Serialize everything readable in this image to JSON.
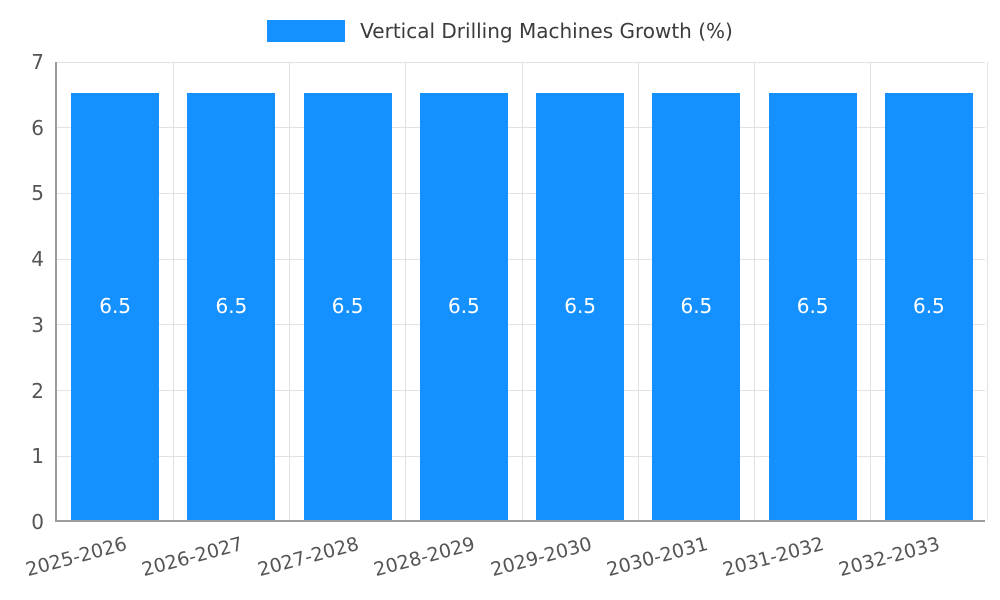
{
  "chart_data": {
    "type": "bar",
    "title": "Vertical Drilling Machines Growth (%)",
    "categories": [
      "2025-2026",
      "2026-2027",
      "2027-2028",
      "2028-2029",
      "2029-2030",
      "2030-2031",
      "2031-2032",
      "2032-2033"
    ],
    "series": [
      {
        "name": "Vertical Drilling Machines Growth (%)",
        "values": [
          6.5,
          6.5,
          6.5,
          6.5,
          6.5,
          6.5,
          6.5,
          6.5
        ]
      }
    ],
    "value_labels": [
      "6.5",
      "6.5",
      "6.5",
      "6.5",
      "6.5",
      "6.5",
      "6.5",
      "6.5"
    ],
    "xlabel": "",
    "ylabel": "",
    "ylim": [
      0,
      7
    ],
    "yticks": [
      0,
      1,
      2,
      3,
      4,
      5,
      6,
      7
    ],
    "grid": true,
    "legend_position": "top",
    "bar_color": "#1590ff",
    "bar_label_color": "#ffffff",
    "axis_text_color": "#555555",
    "grid_color": "#e2e2e2",
    "axis_line_color": "#9c9c9c"
  }
}
